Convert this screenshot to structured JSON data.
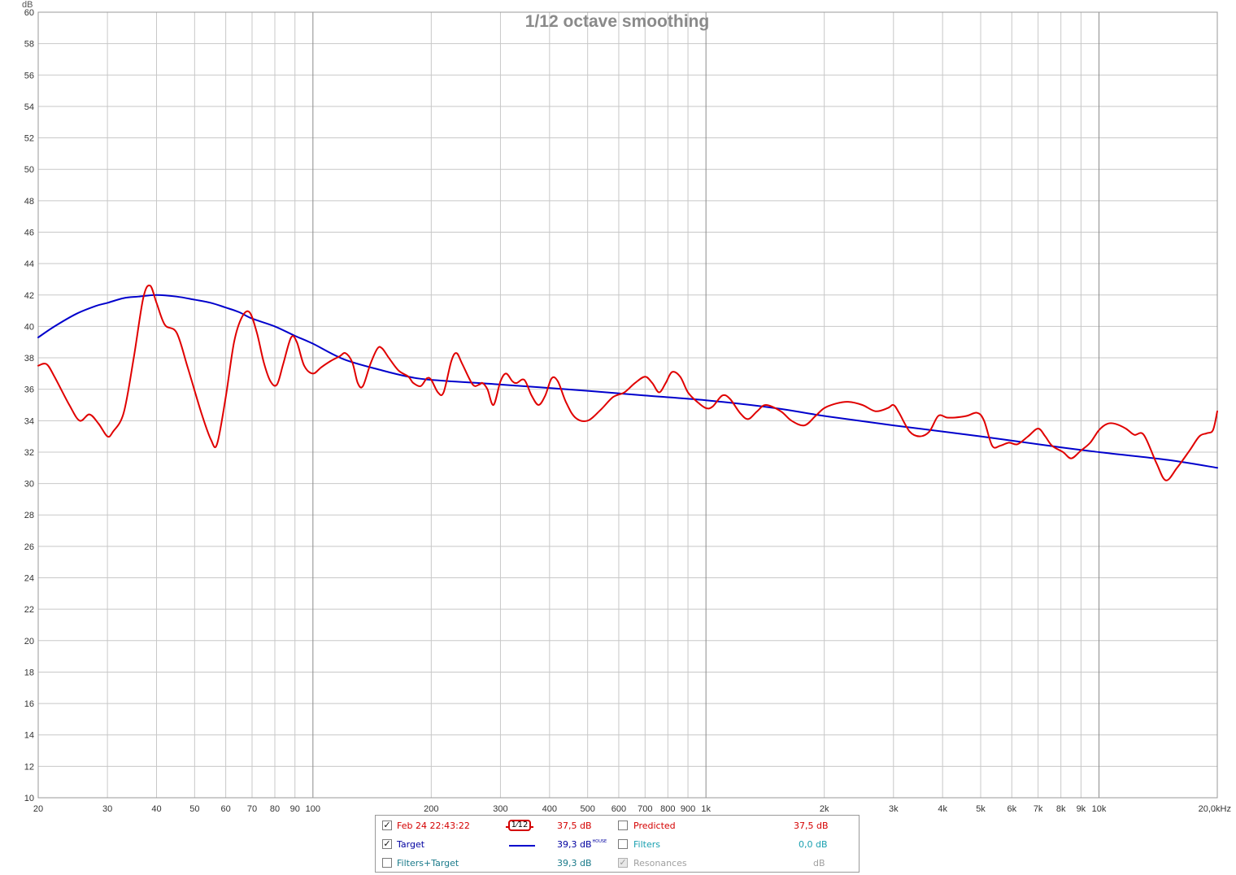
{
  "chart_data": {
    "type": "line",
    "title": "1/12 octave smoothing",
    "ylabel": "dB",
    "xscale": "log",
    "xlim": [
      20,
      20000
    ],
    "ylim": [
      10,
      60
    ],
    "ytick_step": 2,
    "grid": true,
    "x_ticks": [
      {
        "v": 20,
        "label": "20"
      },
      {
        "v": 30,
        "label": "30"
      },
      {
        "v": 40,
        "label": "40"
      },
      {
        "v": 50,
        "label": "50"
      },
      {
        "v": 60,
        "label": "60"
      },
      {
        "v": 70,
        "label": "70"
      },
      {
        "v": 80,
        "label": "80"
      },
      {
        "v": 90,
        "label": "90"
      },
      {
        "v": 100,
        "label": "100"
      },
      {
        "v": 200,
        "label": "200"
      },
      {
        "v": 300,
        "label": "300"
      },
      {
        "v": 400,
        "label": "400"
      },
      {
        "v": 500,
        "label": "500"
      },
      {
        "v": 600,
        "label": "600"
      },
      {
        "v": 700,
        "label": "700"
      },
      {
        "v": 800,
        "label": "800"
      },
      {
        "v": 900,
        "label": "900"
      },
      {
        "v": 1000,
        "label": "1k"
      },
      {
        "v": 2000,
        "label": "2k"
      },
      {
        "v": 3000,
        "label": "3k"
      },
      {
        "v": 4000,
        "label": "4k"
      },
      {
        "v": 5000,
        "label": "5k"
      },
      {
        "v": 6000,
        "label": "6k"
      },
      {
        "v": 7000,
        "label": "7k"
      },
      {
        "v": 8000,
        "label": "8k"
      },
      {
        "v": 9000,
        "label": "9k"
      },
      {
        "v": 10000,
        "label": "10k"
      },
      {
        "v": 20000,
        "label": "20,0kHz"
      }
    ],
    "series": [
      {
        "name": "Feb 24 22:43:22",
        "color": "#e00000",
        "points": [
          [
            20,
            37.5
          ],
          [
            21,
            37.6
          ],
          [
            22,
            36.8
          ],
          [
            24,
            35.0
          ],
          [
            25.5,
            34.0
          ],
          [
            27,
            34.4
          ],
          [
            28.5,
            33.8
          ],
          [
            30,
            33.0
          ],
          [
            31,
            33.3
          ],
          [
            33,
            34.5
          ],
          [
            35,
            38.0
          ],
          [
            37,
            41.8
          ],
          [
            38.5,
            42.6
          ],
          [
            40,
            41.5
          ],
          [
            42,
            40.1
          ],
          [
            45,
            39.6
          ],
          [
            48,
            37.4
          ],
          [
            52,
            34.5
          ],
          [
            55,
            32.8
          ],
          [
            57,
            32.5
          ],
          [
            60,
            35.5
          ],
          [
            63,
            39.0
          ],
          [
            66,
            40.6
          ],
          [
            69,
            40.9
          ],
          [
            72,
            39.6
          ],
          [
            75,
            37.7
          ],
          [
            78,
            36.5
          ],
          [
            81,
            36.3
          ],
          [
            84,
            37.6
          ],
          [
            88,
            39.3
          ],
          [
            91,
            39.0
          ],
          [
            95,
            37.5
          ],
          [
            100,
            37.0
          ],
          [
            105,
            37.4
          ],
          [
            111,
            37.8
          ],
          [
            117,
            38.1
          ],
          [
            121,
            38.3
          ],
          [
            126,
            37.7
          ],
          [
            130,
            36.4
          ],
          [
            134,
            36.2
          ],
          [
            140,
            37.6
          ],
          [
            146,
            38.6
          ],
          [
            150,
            38.6
          ],
          [
            156,
            38.0
          ],
          [
            165,
            37.2
          ],
          [
            175,
            36.8
          ],
          [
            180,
            36.4
          ],
          [
            188,
            36.2
          ],
          [
            195,
            36.7
          ],
          [
            200,
            36.6
          ],
          [
            208,
            35.8
          ],
          [
            215,
            35.8
          ],
          [
            225,
            37.8
          ],
          [
            232,
            38.3
          ],
          [
            240,
            37.6
          ],
          [
            255,
            36.3
          ],
          [
            265,
            36.3
          ],
          [
            270,
            36.4
          ],
          [
            278,
            36.0
          ],
          [
            288,
            35.0
          ],
          [
            300,
            36.5
          ],
          [
            310,
            37.0
          ],
          [
            322,
            36.5
          ],
          [
            330,
            36.4
          ],
          [
            345,
            36.6
          ],
          [
            360,
            35.6
          ],
          [
            375,
            35.0
          ],
          [
            390,
            35.6
          ],
          [
            405,
            36.7
          ],
          [
            420,
            36.5
          ],
          [
            440,
            35.2
          ],
          [
            465,
            34.2
          ],
          [
            500,
            34.0
          ],
          [
            540,
            34.7
          ],
          [
            580,
            35.5
          ],
          [
            620,
            35.8
          ],
          [
            660,
            36.4
          ],
          [
            700,
            36.8
          ],
          [
            730,
            36.4
          ],
          [
            760,
            35.8
          ],
          [
            790,
            36.4
          ],
          [
            820,
            37.1
          ],
          [
            860,
            36.8
          ],
          [
            900,
            35.8
          ],
          [
            950,
            35.2
          ],
          [
            1000,
            34.8
          ],
          [
            1040,
            34.9
          ],
          [
            1100,
            35.6
          ],
          [
            1150,
            35.4
          ],
          [
            1220,
            34.5
          ],
          [
            1280,
            34.1
          ],
          [
            1350,
            34.6
          ],
          [
            1420,
            35.0
          ],
          [
            1550,
            34.6
          ],
          [
            1650,
            34.0
          ],
          [
            1780,
            33.7
          ],
          [
            1900,
            34.3
          ],
          [
            2000,
            34.8
          ],
          [
            2150,
            35.1
          ],
          [
            2300,
            35.2
          ],
          [
            2500,
            35.0
          ],
          [
            2700,
            34.6
          ],
          [
            2900,
            34.8
          ],
          [
            3000,
            35.0
          ],
          [
            3100,
            34.5
          ],
          [
            3300,
            33.3
          ],
          [
            3500,
            33.0
          ],
          [
            3700,
            33.3
          ],
          [
            3900,
            34.3
          ],
          [
            4100,
            34.2
          ],
          [
            4300,
            34.2
          ],
          [
            4600,
            34.3
          ],
          [
            4900,
            34.5
          ],
          [
            5100,
            34.0
          ],
          [
            5350,
            32.4
          ],
          [
            5600,
            32.4
          ],
          [
            5900,
            32.6
          ],
          [
            6200,
            32.5
          ],
          [
            6600,
            33.0
          ],
          [
            7000,
            33.5
          ],
          [
            7300,
            33.0
          ],
          [
            7600,
            32.4
          ],
          [
            8100,
            32.0
          ],
          [
            8500,
            31.6
          ],
          [
            9000,
            32.1
          ],
          [
            9500,
            32.6
          ],
          [
            10000,
            33.4
          ],
          [
            10500,
            33.8
          ],
          [
            11000,
            33.8
          ],
          [
            11700,
            33.5
          ],
          [
            12300,
            33.1
          ],
          [
            13000,
            33.1
          ],
          [
            14000,
            31.3
          ],
          [
            14800,
            30.2
          ],
          [
            15800,
            31.0
          ],
          [
            17000,
            32.1
          ],
          [
            18000,
            33.0
          ],
          [
            18800,
            33.2
          ],
          [
            19500,
            33.4
          ],
          [
            20000,
            34.6
          ]
        ]
      },
      {
        "name": "Target",
        "color": "#0000cc",
        "points": [
          [
            20,
            39.3
          ],
          [
            22,
            40.0
          ],
          [
            25,
            40.8
          ],
          [
            28,
            41.3
          ],
          [
            30,
            41.5
          ],
          [
            33,
            41.8
          ],
          [
            36,
            41.9
          ],
          [
            40,
            42.0
          ],
          [
            45,
            41.9
          ],
          [
            50,
            41.7
          ],
          [
            55,
            41.5
          ],
          [
            60,
            41.2
          ],
          [
            65,
            40.9
          ],
          [
            70,
            40.5
          ],
          [
            80,
            40.0
          ],
          [
            90,
            39.4
          ],
          [
            100,
            38.9
          ],
          [
            120,
            37.9
          ],
          [
            150,
            37.2
          ],
          [
            175,
            36.8
          ],
          [
            200,
            36.6
          ],
          [
            300,
            36.3
          ],
          [
            500,
            35.9
          ],
          [
            700,
            35.6
          ],
          [
            1000,
            35.3
          ],
          [
            1500,
            34.8
          ],
          [
            2000,
            34.3
          ],
          [
            3000,
            33.7
          ],
          [
            5000,
            33.0
          ],
          [
            8000,
            32.3
          ],
          [
            10000,
            32.0
          ],
          [
            15000,
            31.5
          ],
          [
            20000,
            31.0
          ]
        ]
      }
    ]
  },
  "legend": {
    "row1": {
      "label": "Feb 24 22:43:22",
      "checked": "✓",
      "smoothing_label": "1⁄12",
      "value": "37,5 dB",
      "right_label": "Predicted",
      "right_value": "37,5 dB"
    },
    "row2": {
      "label": "Target",
      "checked": "✓",
      "value": "39,3 dB",
      "value_sup": "HOUSE",
      "right_label": "Filters",
      "right_value": "0,0 dB"
    },
    "row3": {
      "label": "Filters+Target",
      "checked": "",
      "value": "39,3 dB",
      "right_label": "Resonances",
      "right_checked": "✓",
      "right_value": "dB"
    }
  }
}
